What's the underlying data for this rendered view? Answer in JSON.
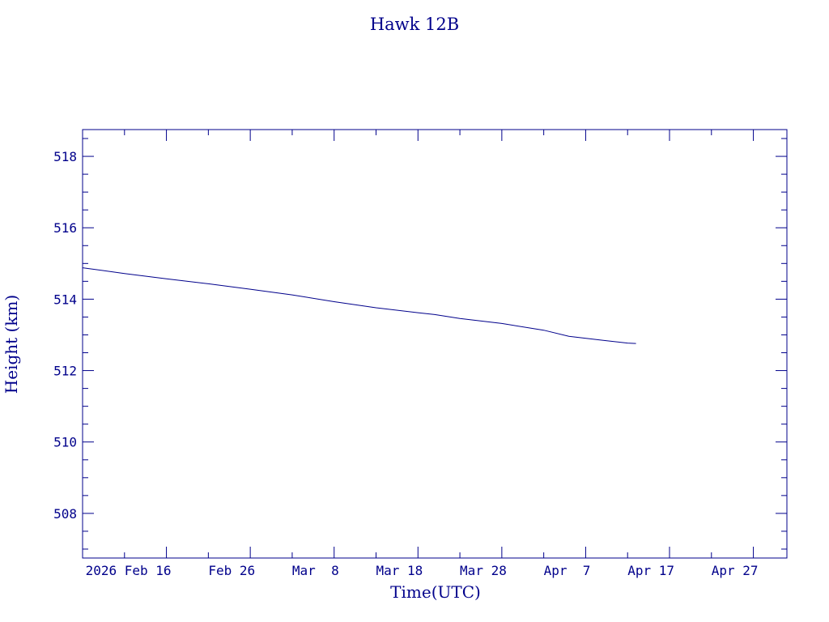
{
  "chart_data": {
    "type": "line",
    "title": "Hawk 12B",
    "xlabel": "Time(UTC)",
    "ylabel": "Height (km)",
    "x_tick_labels": [
      "2026 Feb 16",
      "Feb 26",
      "Mar  8",
      "Mar 18",
      "Mar 28",
      "Apr  7",
      "Apr 17",
      "Apr 27"
    ],
    "y_tick_labels": [
      "508",
      "510",
      "512",
      "514",
      "516",
      "518"
    ],
    "xlim": [
      "2026-02-06",
      "2026-05-01"
    ],
    "ylim": [
      506.75,
      518.75
    ],
    "grid": false,
    "color": "#00008b",
    "series": [
      {
        "x": [
          "2026-02-06",
          "2026-02-11",
          "2026-02-16",
          "2026-02-21",
          "2026-02-26",
          "2026-03-03",
          "2026-03-08",
          "2026-03-13",
          "2026-03-18",
          "2026-03-20",
          "2026-03-23",
          "2026-03-28",
          "2026-04-02",
          "2026-04-05",
          "2026-04-09",
          "2026-04-12",
          "2026-04-13"
        ],
        "values": [
          514.88,
          514.72,
          514.57,
          514.43,
          514.28,
          514.12,
          513.93,
          513.76,
          513.62,
          513.57,
          513.46,
          513.32,
          513.13,
          512.96,
          512.85,
          512.77,
          512.76
        ]
      }
    ]
  }
}
